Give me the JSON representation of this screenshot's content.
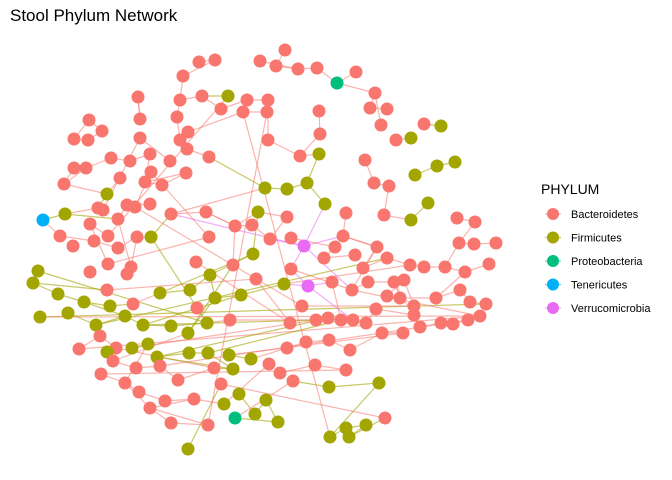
{
  "chart_data": {
    "type": "network",
    "title": "Stool Phylum Network",
    "legend": {
      "title": "PHYLUM",
      "placement": "right",
      "items": [
        {
          "label": "Bacteroidetes",
          "color": "#F8766D"
        },
        {
          "label": "Firmicutes",
          "color": "#A3A500"
        },
        {
          "label": "Proteobacteria",
          "color": "#00BF7D"
        },
        {
          "label": "Tenericutes",
          "color": "#00B0F6"
        },
        {
          "label": "Verrucomicrobia",
          "color": "#E76BF3"
        }
      ]
    },
    "node_counts": {
      "Bacteroidetes": 168,
      "Firmicutes": 70,
      "Proteobacteria": 2,
      "Tenericutes": 1,
      "Verrucomicrobia": 2
    },
    "edge_colors": {
      "Bacteroidetes": "#F8766D",
      "Firmicutes": "#A3A500",
      "Verrucomicrobia": "#E76BF3"
    }
  }
}
